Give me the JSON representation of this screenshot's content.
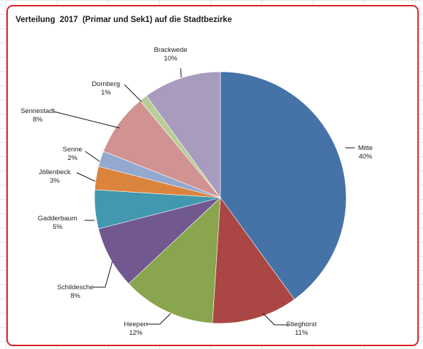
{
  "chart_data": {
    "type": "pie",
    "title": "Verteilung  2017  (Primar und Sek1) auf die Stadtbezirke",
    "slices": [
      {
        "label": "Mitte",
        "value": 40,
        "pct_label": "40%",
        "color": "#4572a7"
      },
      {
        "label": "Stieghorst",
        "value": 11,
        "pct_label": "11%",
        "color": "#aa4643"
      },
      {
        "label": "Heepen",
        "value": 12,
        "pct_label": "12%",
        "color": "#89a54e"
      },
      {
        "label": "Schildesche",
        "value": 8,
        "pct_label": "8%",
        "color": "#71588f"
      },
      {
        "label": "Gadderbaum",
        "value": 5,
        "pct_label": "5%",
        "color": "#4198af"
      },
      {
        "label": "Jöllenbeck",
        "value": 3,
        "pct_label": "3%",
        "color": "#db843d"
      },
      {
        "label": "Senne",
        "value": 2,
        "pct_label": "2%",
        "color": "#93a9cf"
      },
      {
        "label": "Sennestadt",
        "value": 8,
        "pct_label": "8%",
        "color": "#d19392"
      },
      {
        "label": "Dornberg",
        "value": 1,
        "pct_label": "1%",
        "color": "#b9cd96"
      },
      {
        "label": "Brackwede",
        "value": 10,
        "pct_label": "10%",
        "color": "#a99bbd"
      }
    ]
  }
}
